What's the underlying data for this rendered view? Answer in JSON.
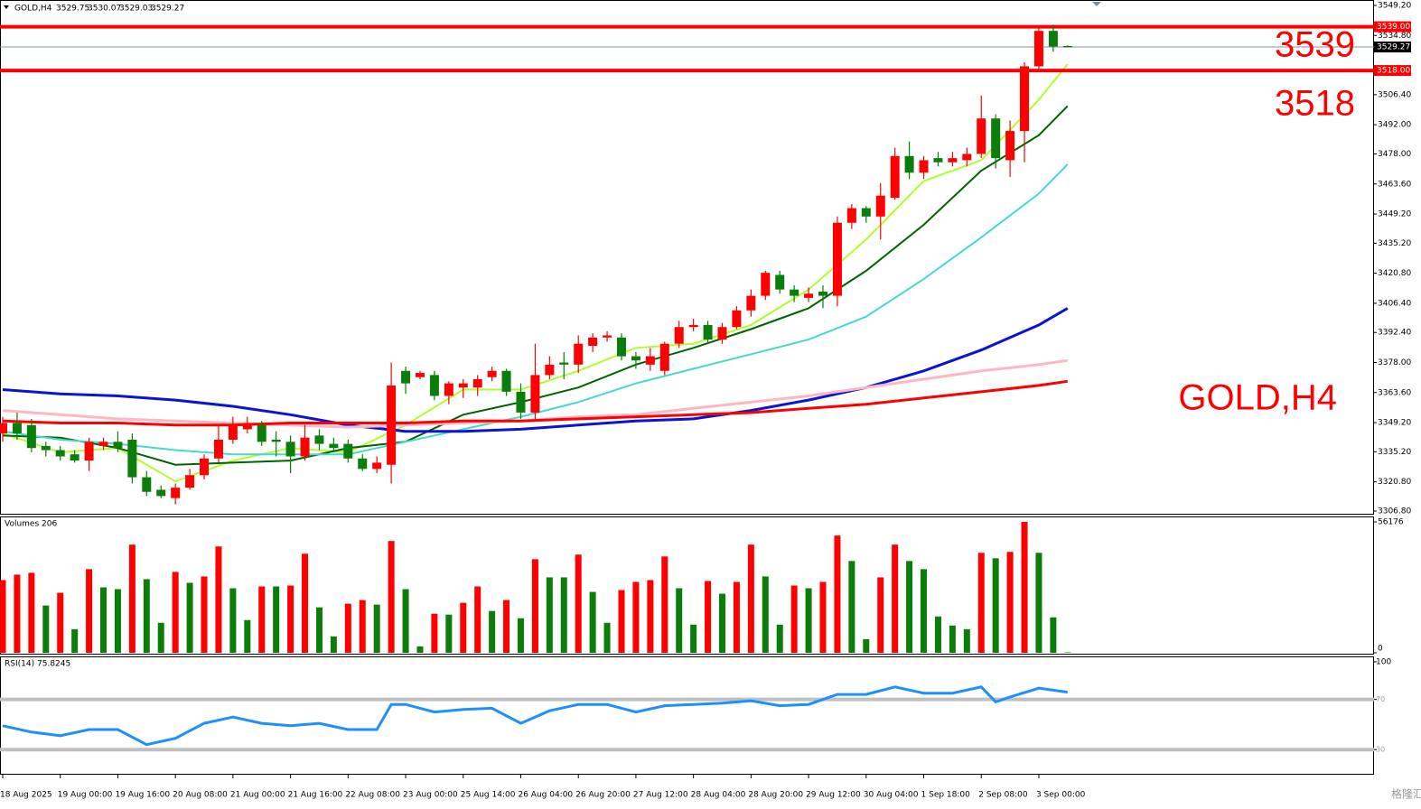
{
  "chart_data": [
    {
      "type": "candlestick",
      "title": "GOLD,H4",
      "open": [
        3344,
        3349,
        3348,
        3338,
        3336,
        3334,
        3331,
        3338,
        3340,
        3341,
        3323,
        3317,
        3313,
        3318,
        3324,
        3332,
        3341,
        3346,
        3348,
        3341,
        3340,
        3333,
        3343,
        3339,
        3339,
        3332,
        3327,
        3329,
        3374,
        3371,
        3372,
        3362,
        3366,
        3366,
        3371,
        3374,
        3364,
        3354,
        3372,
        3378,
        3377,
        3386,
        3390,
        3390,
        3381,
        3377,
        3374,
        3387,
        3395,
        3396,
        3389,
        3395,
        3403,
        3410,
        3420,
        3413,
        3409,
        3412,
        3410,
        3445,
        3452,
        3448,
        3457,
        3477,
        3469,
        3476,
        3474,
        3475,
        3478,
        3495,
        3475,
        3489,
        3520,
        3537,
        3529.75
      ],
      "high": [
        3352,
        3354,
        3351,
        3340,
        3338,
        3336,
        3342,
        3342,
        3345,
        3344,
        3326,
        3319,
        3320,
        3327,
        3334,
        3348,
        3352,
        3352,
        3350,
        3345,
        3343,
        3348,
        3346,
        3342,
        3341,
        3334,
        3333,
        3378,
        3376,
        3374,
        3374,
        3369,
        3370,
        3372,
        3376,
        3375,
        3368,
        3387,
        3381,
        3383,
        3391,
        3392,
        3393,
        3392,
        3383,
        3385,
        3388,
        3398,
        3399,
        3398,
        3397,
        3405,
        3413,
        3422,
        3422,
        3415,
        3414,
        3415,
        3448,
        3454,
        3453,
        3464,
        3481,
        3484,
        3477,
        3479,
        3479,
        3481,
        3506,
        3497,
        3494,
        3522,
        3539,
        3540,
        3530.07
      ],
      "low": [
        3340,
        3341,
        3335,
        3333,
        3331,
        3330,
        3326,
        3336,
        3335,
        3320,
        3314,
        3313,
        3310,
        3317,
        3322,
        3330,
        3339,
        3344,
        3338,
        3333,
        3325,
        3331,
        3336,
        3335,
        3330,
        3326,
        3325,
        3320,
        3363,
        3370,
        3360,
        3358,
        3361,
        3362,
        3369,
        3362,
        3351,
        3350,
        3370,
        3370,
        3373,
        3383,
        3388,
        3379,
        3375,
        3374,
        3372,
        3385,
        3393,
        3387,
        3387,
        3394,
        3400,
        3408,
        3411,
        3407,
        3407,
        3404,
        3405,
        3442,
        3445,
        3437,
        3456,
        3466,
        3466,
        3472,
        3472,
        3472,
        3476,
        3471,
        3467,
        3474,
        3518,
        3527,
        3529.03
      ],
      "close": [
        3349,
        3344,
        3337,
        3336,
        3333,
        3331,
        3340,
        3340,
        3337,
        3323,
        3316,
        3314,
        3318,
        3324,
        3332,
        3341,
        3348,
        3349,
        3340,
        3340,
        3333,
        3342,
        3339,
        3337,
        3332,
        3327,
        3330,
        3367,
        3368,
        3373,
        3362,
        3368,
        3368,
        3370,
        3374,
        3364,
        3354,
        3372,
        3377,
        3377,
        3387,
        3390,
        3391,
        3381,
        3379,
        3381,
        3387,
        3395,
        3396,
        3389,
        3395,
        3403,
        3410,
        3421,
        3413,
        3410,
        3411,
        3410,
        3445,
        3452,
        3448,
        3458,
        3477,
        3469,
        3475,
        3474,
        3476,
        3478,
        3495,
        3476,
        3489,
        3520,
        3537,
        3529.5,
        3529.27
      ],
      "up_color": "#ff0000",
      "down_color": "#0b7d0b",
      "series": [
        {
          "color": "#adff2f",
          "x": [
            0,
            4,
            8,
            12,
            16,
            20,
            24,
            28,
            32,
            36,
            40,
            44,
            48,
            52,
            56,
            60,
            64,
            68,
            72,
            74
          ],
          "values": [
            3344,
            3335,
            3337,
            3321,
            3331,
            3337,
            3335,
            3348,
            3365,
            3365,
            3374,
            3385,
            3387,
            3396,
            3413,
            3437,
            3465,
            3475,
            3504,
            3521
          ]
        },
        {
          "color": "#006400",
          "x": [
            0,
            4,
            8,
            12,
            16,
            20,
            24,
            28,
            32,
            36,
            40,
            44,
            48,
            52,
            56,
            60,
            64,
            68,
            72,
            74
          ],
          "values": [
            3343,
            3342,
            3337,
            3329,
            3330,
            3331,
            3337,
            3340,
            3353,
            3359,
            3366,
            3377,
            3385,
            3394,
            3404,
            3422,
            3444,
            3470,
            3487,
            3501
          ]
        },
        {
          "color": "#48d8d0",
          "x": [
            0,
            4,
            8,
            12,
            16,
            20,
            24,
            28,
            32,
            36,
            40,
            44,
            48,
            52,
            56,
            60,
            64,
            68,
            72,
            74
          ],
          "values": [
            3345,
            3341,
            3339,
            3336,
            3334,
            3334,
            3334,
            3340,
            3346,
            3352,
            3359,
            3368,
            3375,
            3382,
            3389,
            3400,
            3418,
            3438,
            3459,
            3473
          ]
        },
        {
          "color": "#0a14d2",
          "x": [
            0,
            4,
            8,
            12,
            16,
            20,
            24,
            28,
            32,
            36,
            40,
            44,
            48,
            52,
            56,
            60,
            64,
            68,
            72,
            74
          ],
          "values": [
            3365,
            3363,
            3362,
            3360,
            3357,
            3353,
            3348,
            3345,
            3345,
            3346,
            3348,
            3350,
            3351,
            3355,
            3360,
            3366,
            3374,
            3384,
            3396,
            3404
          ]
        },
        {
          "color": "#ffb6c1",
          "x": [
            0,
            4,
            8,
            12,
            16,
            20,
            24,
            28,
            32,
            36,
            40,
            44,
            48,
            52,
            56,
            60,
            64,
            68,
            72,
            74
          ],
          "values": [
            3355,
            3353,
            3351,
            3350,
            3349,
            3348,
            3347,
            3348,
            3349,
            3350,
            3352,
            3353,
            3356,
            3359,
            3362,
            3366,
            3370,
            3374,
            3377,
            3379
          ]
        },
        {
          "color": "#ff0000",
          "x": [
            0,
            4,
            8,
            12,
            16,
            20,
            24,
            28,
            32,
            36,
            40,
            44,
            48,
            52,
            56,
            60,
            64,
            68,
            72,
            74
          ],
          "values": [
            3350,
            3349,
            3349,
            3348,
            3348,
            3349,
            3349,
            3349,
            3350,
            3350,
            3351,
            3352,
            3353,
            3354,
            3356,
            3358,
            3361,
            3364,
            3367,
            3369
          ]
        }
      ],
      "ylim": [
        3306.8,
        3549.2
      ],
      "yticks": [
        {
          "value": 3549.2,
          "label": "3549.20"
        },
        {
          "value": 3534.8,
          "label": "3534.80"
        },
        {
          "value": 3506.4,
          "label": "3506.40"
        },
        {
          "value": 3492,
          "label": "3492.00"
        },
        {
          "value": 3478,
          "label": "3478.00"
        },
        {
          "value": 3463.6,
          "label": "3463.60"
        },
        {
          "value": 3449.2,
          "label": "3449.20"
        },
        {
          "value": 3435.2,
          "label": "3435.20"
        },
        {
          "value": 3420.8,
          "label": "3420.80"
        },
        {
          "value": 3406.4,
          "label": "3406.40"
        },
        {
          "value": 3392.4,
          "label": "3392.40"
        },
        {
          "value": 3378,
          "label": "3378.00"
        },
        {
          "value": 3363.6,
          "label": "3363.60"
        },
        {
          "value": 3349.2,
          "label": "3349.20"
        },
        {
          "value": 3335.2,
          "label": "3335.20"
        },
        {
          "value": 3320.8,
          "label": "3320.80"
        },
        {
          "value": 3306.8,
          "label": "3306.80"
        }
      ],
      "hlines": [
        {
          "value": 3539,
          "label": "3539.00",
          "color": "#ff0000"
        },
        {
          "value": 3518,
          "label": "3518.00",
          "color": "#ff0000"
        }
      ],
      "bid_color": "#8090a0",
      "annotations": [
        "3539",
        "3518",
        "GOLD,H4"
      ]
    },
    {
      "type": "bar",
      "title": "Volumes",
      "values": [
        31200,
        33540,
        34320,
        20280,
        25740,
        10140,
        35880,
        28080,
        27300,
        46410,
        31590,
        12870,
        34710,
        30030,
        32760,
        45630,
        27690,
        14040,
        28470,
        28470,
        28860,
        42510,
        19500,
        7020,
        21060,
        22620,
        20670,
        47970,
        27300,
        2730,
        16770,
        16380,
        21450,
        28470,
        17940,
        22620,
        14820,
        40170,
        32370,
        32370,
        42120,
        26130,
        12870,
        26910,
        30420,
        31200,
        41340,
        27690,
        12090,
        30810,
        25350,
        30420,
        46410,
        32760,
        12090,
        28860,
        27690,
        30420,
        50310,
        39390,
        5850,
        32370,
        46410,
        39390,
        35880,
        15600,
        11700,
        10140,
        42900,
        40560,
        43290,
        56176,
        42900,
        15210,
        206
      ],
      "up_color": "#ff0000",
      "down_color": "#0b7d0b",
      "ylim": [
        0,
        56176
      ],
      "yticks": [
        0,
        56176
      ]
    },
    {
      "type": "line",
      "title": "RSI(14)",
      "color": "#1e8fff",
      "x": [
        0,
        2,
        4,
        6,
        8,
        10,
        12,
        14,
        16,
        18,
        20,
        22,
        24,
        26,
        27,
        28,
        30,
        32,
        34,
        36,
        38,
        40,
        42,
        44,
        46,
        48,
        50,
        52,
        54,
        56,
        58,
        60,
        62,
        64,
        66,
        68,
        69,
        70,
        72,
        74
      ],
      "values": [
        49,
        44,
        41,
        46,
        46,
        34,
        39,
        51,
        56,
        51,
        49,
        51,
        46,
        46,
        66,
        66,
        60,
        62,
        63,
        51,
        61,
        66,
        66,
        60,
        65,
        66,
        67,
        69,
        65,
        66,
        74,
        74,
        80,
        75,
        75,
        80,
        68,
        72,
        79,
        75.8245
      ],
      "ylim": [
        10,
        100
      ],
      "yticks": [
        100,
        70,
        30
      ],
      "hlines": [
        70,
        30
      ],
      "hline_color": "#c0c0c0",
      "x_ticks": [
        {
          "value": 0,
          "label": "18 Aug 2025"
        },
        {
          "value": 4,
          "label": "19 Aug 00:00"
        },
        {
          "value": 8,
          "label": "19 Aug 16:00"
        },
        {
          "value": 12,
          "label": "20 Aug 08:00"
        },
        {
          "value": 16,
          "label": "21 Aug 00:00"
        },
        {
          "value": 20,
          "label": "21 Aug 16:00"
        },
        {
          "value": 24,
          "label": "22 Aug 08:00"
        },
        {
          "value": 28,
          "label": "23 Aug 00:00"
        },
        {
          "value": 32,
          "label": "25 Aug 14:00"
        },
        {
          "value": 36,
          "label": "26 Aug 04:00"
        },
        {
          "value": 40,
          "label": "26 Aug 20:00"
        },
        {
          "value": 44,
          "label": "27 Aug 12:00"
        },
        {
          "value": 48,
          "label": "28 Aug 04:00"
        },
        {
          "value": 52,
          "label": "28 Aug 20:00"
        },
        {
          "value": 56,
          "label": "29 Aug 12:00"
        },
        {
          "value": 60,
          "label": "30 Aug 04:00"
        },
        {
          "value": 64,
          "label": "1 Sep 18:00"
        },
        {
          "value": 68,
          "label": "2 Sep 08:00"
        },
        {
          "value": 72,
          "label": "3 Sep 00:00"
        }
      ]
    }
  ],
  "watermark": "格隆汇"
}
